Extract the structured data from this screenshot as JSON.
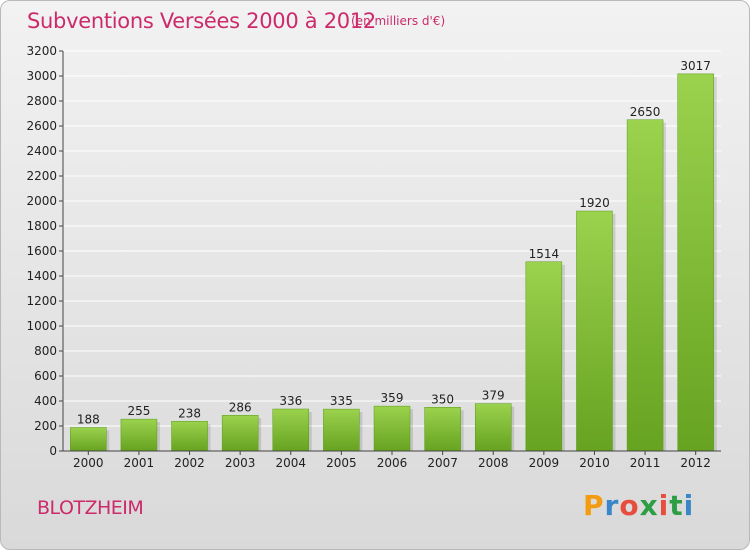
{
  "header": {
    "title": "Subventions Versées 2000 à 2012",
    "subtitle": "(en milliers d'€)"
  },
  "commune": "BLOTZHEIM",
  "logo": {
    "letters": [
      "P",
      "r",
      "o",
      "x",
      "i",
      "t",
      "i"
    ],
    "colors": [
      "#f39c12",
      "#3a86c8",
      "#e74c3c",
      "#2e9e44",
      "#e74c3c",
      "#2e9e44",
      "#3a86c8"
    ]
  },
  "chart_data": {
    "type": "bar",
    "title": "Subventions Versées 2000 à 2012",
    "subtitle": "(en milliers d'€)",
    "categories": [
      "2000",
      "2001",
      "2002",
      "2003",
      "2004",
      "2005",
      "2006",
      "2007",
      "2008",
      "2009",
      "2010",
      "2011",
      "2012"
    ],
    "values": [
      188,
      255,
      238,
      286,
      336,
      335,
      359,
      350,
      379,
      1514,
      1920,
      2650,
      3017
    ],
    "ylim": [
      0,
      3200
    ],
    "yticks": [
      0,
      200,
      400,
      600,
      800,
      1000,
      1200,
      1400,
      1600,
      1800,
      2000,
      2200,
      2400,
      2600,
      2800,
      3000,
      3200
    ],
    "grid": true,
    "bar_color": "#7fc23a"
  }
}
